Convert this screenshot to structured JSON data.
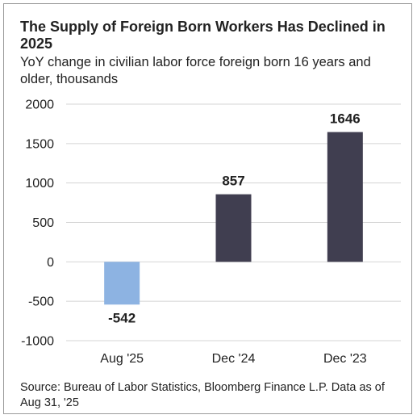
{
  "title": "The Supply of Foreign Born Workers Has Declined in 2025",
  "subtitle": "YoY change in civilian labor force foreign born 16 years and older, thousands",
  "source": "Source: Bureau of Labor Statistics, Bloomberg Finance L.P. Data as of Aug  31, '25",
  "chart_data": {
    "type": "bar",
    "categories": [
      "Aug '25",
      "Dec '24",
      "Dec '23"
    ],
    "values": [
      -542,
      857,
      1646
    ],
    "data_labels": [
      "-542",
      "857",
      "1646"
    ],
    "colors": [
      "#8db3e2",
      "#403e50",
      "#403e50"
    ],
    "ylim": [
      -1000,
      2000
    ],
    "yticks": [
      2000,
      1500,
      1000,
      500,
      0,
      -500,
      -1000
    ],
    "ytick_labels": [
      "2000",
      "1500",
      "1000",
      "500",
      "0",
      "-500",
      "-1000"
    ],
    "grid": true,
    "legend": "none"
  }
}
